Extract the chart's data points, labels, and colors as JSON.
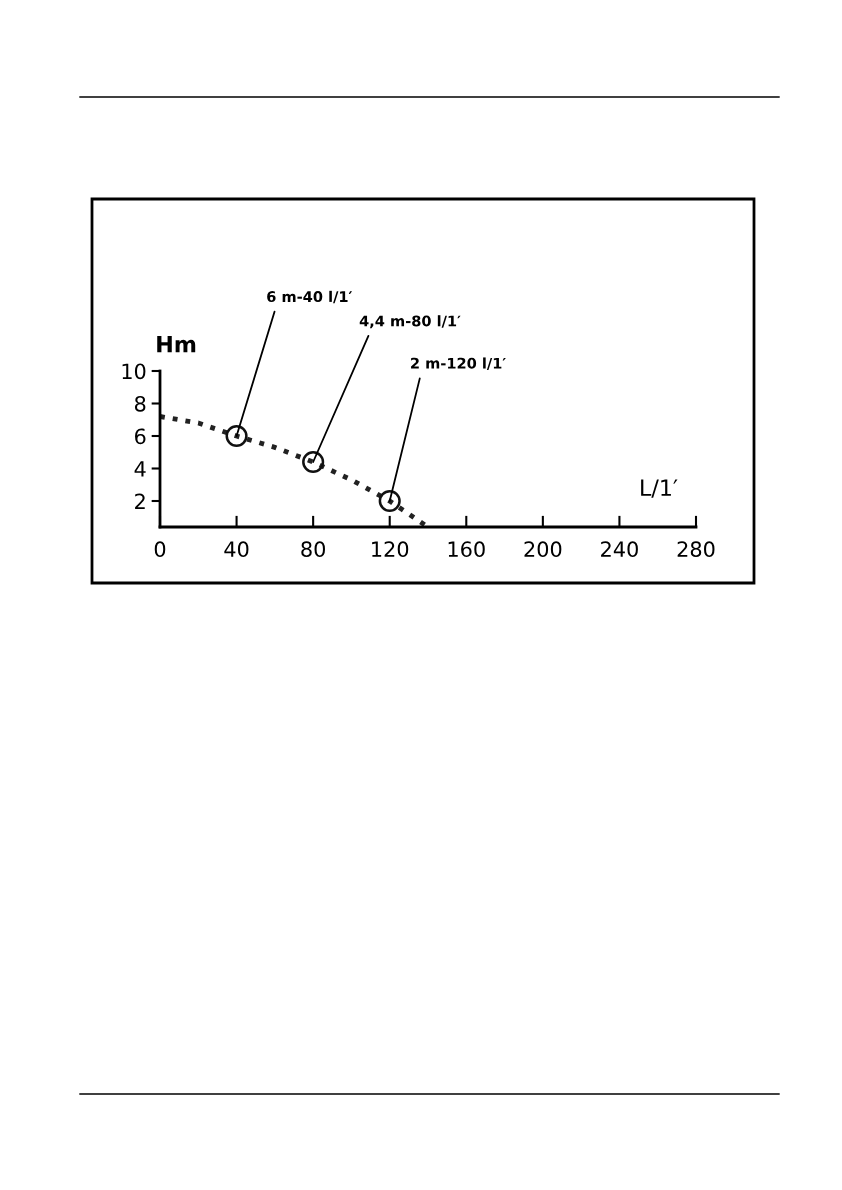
{
  "chart_data": {
    "type": "line",
    "xlabel": "L/1′",
    "ylabel": "Hm",
    "x": [
      0,
      20,
      40,
      60,
      80,
      100,
      120,
      130,
      140
    ],
    "series": [
      {
        "color": "#222222",
        "line_style": "dotted",
        "marker": "none",
        "values": [
          7.2,
          6.8,
          6,
          5.3,
          4.4,
          3.3,
          2,
          1.2,
          0.4
        ]
      },
      {
        "type": "scatter",
        "color": "#111111",
        "marker": "circle",
        "x": [
          40,
          80,
          120
        ],
        "values": [
          6,
          4.4,
          2
        ]
      }
    ],
    "annotations": [
      {
        "text": "6 m-40 l/1′",
        "x": 40,
        "y": 6
      },
      {
        "text": "4,4 m-80 l/1′",
        "x": 80,
        "y": 4.4
      },
      {
        "text": "2 m-120 l/1′",
        "x": 120,
        "y": 2
      }
    ],
    "xlim": [
      0,
      280
    ],
    "xticks": [
      0,
      40,
      80,
      120,
      160,
      200,
      240,
      280
    ],
    "ylim": [
      0.4,
      10
    ],
    "yticks": [
      2,
      4,
      6,
      8,
      10
    ],
    "grid": false,
    "legend": false
  }
}
